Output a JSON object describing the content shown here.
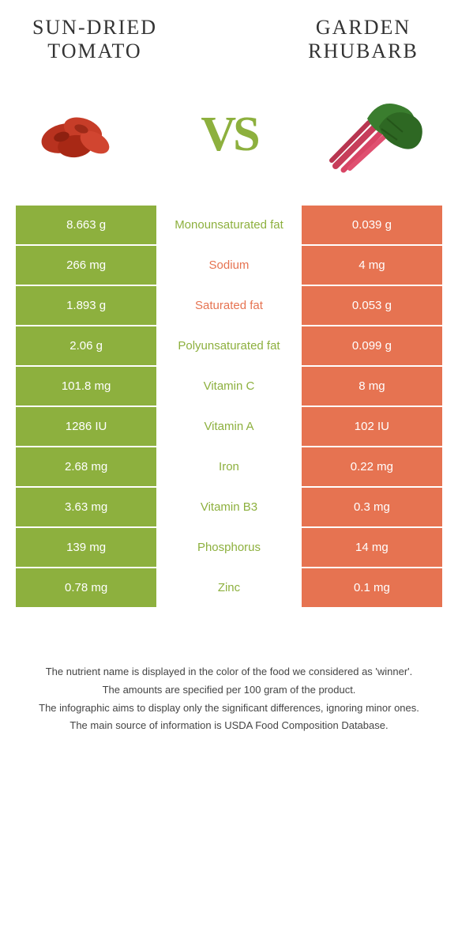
{
  "left_title": "SUN-DRIED TOMATO",
  "right_title": "GARDEN RHUBARB",
  "vs_text": "VS",
  "colors": {
    "left": "#8db03e",
    "right": "#e67351",
    "bg": "#ffffff"
  },
  "rows": [
    {
      "left": "8.663 g",
      "label": "Monounsaturated fat",
      "right": "0.039 g",
      "winner": "left"
    },
    {
      "left": "266 mg",
      "label": "Sodium",
      "right": "4 mg",
      "winner": "right"
    },
    {
      "left": "1.893 g",
      "label": "Saturated fat",
      "right": "0.053 g",
      "winner": "right"
    },
    {
      "left": "2.06 g",
      "label": "Polyunsaturated fat",
      "right": "0.099 g",
      "winner": "left"
    },
    {
      "left": "101.8 mg",
      "label": "Vitamin C",
      "right": "8 mg",
      "winner": "left"
    },
    {
      "left": "1286 IU",
      "label": "Vitamin A",
      "right": "102 IU",
      "winner": "left"
    },
    {
      "left": "2.68 mg",
      "label": "Iron",
      "right": "0.22 mg",
      "winner": "left"
    },
    {
      "left": "3.63 mg",
      "label": "Vitamin B3",
      "right": "0.3 mg",
      "winner": "left"
    },
    {
      "left": "139 mg",
      "label": "Phosphorus",
      "right": "14 mg",
      "winner": "left"
    },
    {
      "left": "0.78 mg",
      "label": "Zinc",
      "right": "0.1 mg",
      "winner": "left"
    }
  ],
  "footer": [
    "The nutrient name is displayed in the color of the food we considered as 'winner'.",
    "The amounts are specified per 100 gram of the product.",
    "The infographic aims to display only the significant differences, ignoring minor ones.",
    "The main source of information is USDA Food Composition Database."
  ]
}
